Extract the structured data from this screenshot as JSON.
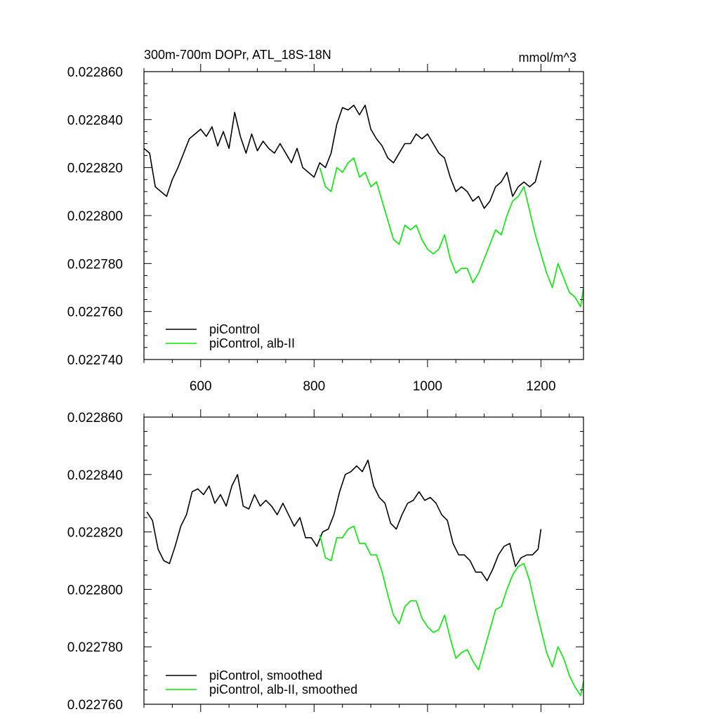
{
  "chart_data": [
    {
      "type": "line",
      "title_left": "300m-700m DOPr, ATL_18S-18N",
      "title_right": "mmol/m^3",
      "xlim": [
        500,
        1275
      ],
      "ylim": [
        0.02274,
        0.02286
      ],
      "xticks": [
        600,
        800,
        1000,
        1200
      ],
      "xtick_labels": [
        "600",
        "800",
        "1000",
        "1200"
      ],
      "yticks": [
        0.02274,
        0.02276,
        0.02278,
        0.0228,
        0.02282,
        0.02284,
        0.02286
      ],
      "ytick_labels": [
        "0.022740",
        "0.022760",
        "0.022780",
        "0.022800",
        "0.022820",
        "0.022840",
        "0.022860"
      ],
      "legend_position": "bottom-left",
      "series": [
        {
          "name": "piControl",
          "color": "#000000",
          "x": [
            500,
            510,
            520,
            530,
            540,
            550,
            560,
            570,
            580,
            590,
            600,
            610,
            620,
            630,
            640,
            650,
            660,
            670,
            680,
            690,
            700,
            710,
            720,
            730,
            740,
            750,
            760,
            770,
            780,
            790,
            800,
            810,
            820,
            830,
            840,
            850,
            860,
            870,
            880,
            890,
            900,
            910,
            920,
            930,
            940,
            950,
            960,
            970,
            980,
            990,
            1000,
            1010,
            1020,
            1030,
            1040,
            1050,
            1060,
            1070,
            1080,
            1090,
            1100,
            1110,
            1120,
            1130,
            1140,
            1150,
            1160,
            1170,
            1180,
            1190,
            1200
          ],
          "y": [
            0.022828,
            0.022826,
            0.022812,
            0.02281,
            0.022808,
            0.022815,
            0.02282,
            0.022826,
            0.022832,
            0.022834,
            0.022836,
            0.022833,
            0.022837,
            0.022829,
            0.022835,
            0.022828,
            0.022843,
            0.022833,
            0.022826,
            0.022834,
            0.022827,
            0.022831,
            0.022828,
            0.022826,
            0.02283,
            0.022826,
            0.022822,
            0.022828,
            0.02282,
            0.022818,
            0.022816,
            0.022822,
            0.02282,
            0.022826,
            0.022838,
            0.022845,
            0.022844,
            0.022846,
            0.022842,
            0.022846,
            0.022836,
            0.022832,
            0.022829,
            0.022824,
            0.022822,
            0.022826,
            0.02283,
            0.02283,
            0.022834,
            0.022832,
            0.022834,
            0.02283,
            0.022826,
            0.022824,
            0.022816,
            0.02281,
            0.022812,
            0.02281,
            0.022806,
            0.022808,
            0.022803,
            0.022806,
            0.022812,
            0.022814,
            0.022818,
            0.022808,
            0.022812,
            0.022814,
            0.022812,
            0.022814,
            0.022823
          ]
        },
        {
          "name": "piControl, alb-II",
          "color": "#00ee00",
          "x": [
            810,
            820,
            830,
            840,
            850,
            860,
            870,
            880,
            890,
            900,
            910,
            920,
            930,
            940,
            950,
            960,
            970,
            980,
            990,
            1000,
            1010,
            1020,
            1030,
            1040,
            1050,
            1060,
            1070,
            1080,
            1090,
            1100,
            1110,
            1120,
            1130,
            1140,
            1150,
            1160,
            1170,
            1180,
            1190,
            1200,
            1210,
            1220,
            1230,
            1240,
            1250,
            1260,
            1270,
            1275
          ],
          "y": [
            0.02282,
            0.022812,
            0.02281,
            0.02282,
            0.022818,
            0.022822,
            0.022824,
            0.022816,
            0.022818,
            0.022812,
            0.022814,
            0.022806,
            0.022798,
            0.02279,
            0.022788,
            0.022796,
            0.022794,
            0.022796,
            0.02279,
            0.022786,
            0.022784,
            0.022786,
            0.022792,
            0.022782,
            0.022776,
            0.022778,
            0.022778,
            0.022772,
            0.022776,
            0.022782,
            0.022788,
            0.022794,
            0.022792,
            0.0228,
            0.022806,
            0.022808,
            0.022812,
            0.022802,
            0.022792,
            0.022784,
            0.022776,
            0.02277,
            0.02278,
            0.022774,
            0.022768,
            0.022766,
            0.022762,
            0.02277
          ]
        }
      ]
    },
    {
      "type": "line",
      "xlim": [
        500,
        1275
      ],
      "ylim": [
        0.02276,
        0.02286
      ],
      "xticks": [
        600,
        800,
        1000,
        1200
      ],
      "xtick_labels": [],
      "yticks": [
        0.02276,
        0.02278,
        0.0228,
        0.02282,
        0.02284,
        0.02286
      ],
      "ytick_labels": [
        "0.022760",
        "0.022780",
        "0.022800",
        "0.022820",
        "0.022840",
        "0.022860"
      ],
      "legend_position": "bottom-left",
      "series": [
        {
          "name": "piControl, smoothed",
          "color": "#000000",
          "x": [
            505,
            515,
            525,
            535,
            545,
            555,
            565,
            575,
            585,
            595,
            605,
            615,
            625,
            635,
            645,
            655,
            665,
            675,
            685,
            695,
            705,
            715,
            725,
            735,
            745,
            755,
            765,
            775,
            785,
            795,
            805,
            815,
            825,
            835,
            845,
            855,
            865,
            875,
            885,
            895,
            905,
            915,
            925,
            935,
            945,
            955,
            965,
            975,
            985,
            995,
            1005,
            1015,
            1025,
            1035,
            1045,
            1055,
            1065,
            1075,
            1085,
            1095,
            1105,
            1115,
            1125,
            1135,
            1145,
            1155,
            1165,
            1175,
            1185,
            1195,
            1200
          ],
          "y": [
            0.022827,
            0.022824,
            0.022814,
            0.02281,
            0.022809,
            0.022815,
            0.022822,
            0.022826,
            0.022834,
            0.022835,
            0.022833,
            0.022836,
            0.02283,
            0.022833,
            0.022829,
            0.022836,
            0.02284,
            0.022829,
            0.022828,
            0.022833,
            0.022829,
            0.022831,
            0.022829,
            0.022826,
            0.02283,
            0.022826,
            0.022822,
            0.022825,
            0.022818,
            0.022818,
            0.022815,
            0.02282,
            0.022821,
            0.022826,
            0.022834,
            0.02284,
            0.022841,
            0.022843,
            0.022841,
            0.022845,
            0.022836,
            0.022832,
            0.02283,
            0.022823,
            0.022821,
            0.022826,
            0.02283,
            0.022831,
            0.022834,
            0.022831,
            0.022832,
            0.02283,
            0.022826,
            0.022824,
            0.022816,
            0.022812,
            0.022812,
            0.02281,
            0.022806,
            0.022806,
            0.022803,
            0.022807,
            0.022812,
            0.022815,
            0.022816,
            0.022808,
            0.022811,
            0.022812,
            0.022812,
            0.022814,
            0.022821
          ]
        },
        {
          "name": "piControl, alb-II, smoothed",
          "color": "#00ee00",
          "x": [
            810,
            820,
            830,
            840,
            850,
            860,
            870,
            880,
            890,
            900,
            910,
            920,
            930,
            940,
            950,
            960,
            970,
            980,
            990,
            1000,
            1010,
            1020,
            1030,
            1040,
            1050,
            1060,
            1070,
            1080,
            1090,
            1100,
            1110,
            1120,
            1130,
            1140,
            1150,
            1160,
            1170,
            1180,
            1190,
            1200,
            1210,
            1220,
            1230,
            1240,
            1250,
            1260,
            1270,
            1275
          ],
          "y": [
            0.022819,
            0.022811,
            0.02281,
            0.022818,
            0.022818,
            0.022821,
            0.022822,
            0.022816,
            0.022816,
            0.022812,
            0.022812,
            0.022806,
            0.022798,
            0.022791,
            0.022788,
            0.022794,
            0.022796,
            0.022796,
            0.02279,
            0.022787,
            0.022785,
            0.022786,
            0.022791,
            0.022783,
            0.022776,
            0.022778,
            0.022779,
            0.022775,
            0.022772,
            0.022779,
            0.022786,
            0.022793,
            0.022794,
            0.0228,
            0.022805,
            0.022808,
            0.022809,
            0.022803,
            0.022794,
            0.022786,
            0.022778,
            0.022773,
            0.02278,
            0.022776,
            0.02277,
            0.022766,
            0.022763,
            0.022768
          ]
        }
      ]
    }
  ]
}
